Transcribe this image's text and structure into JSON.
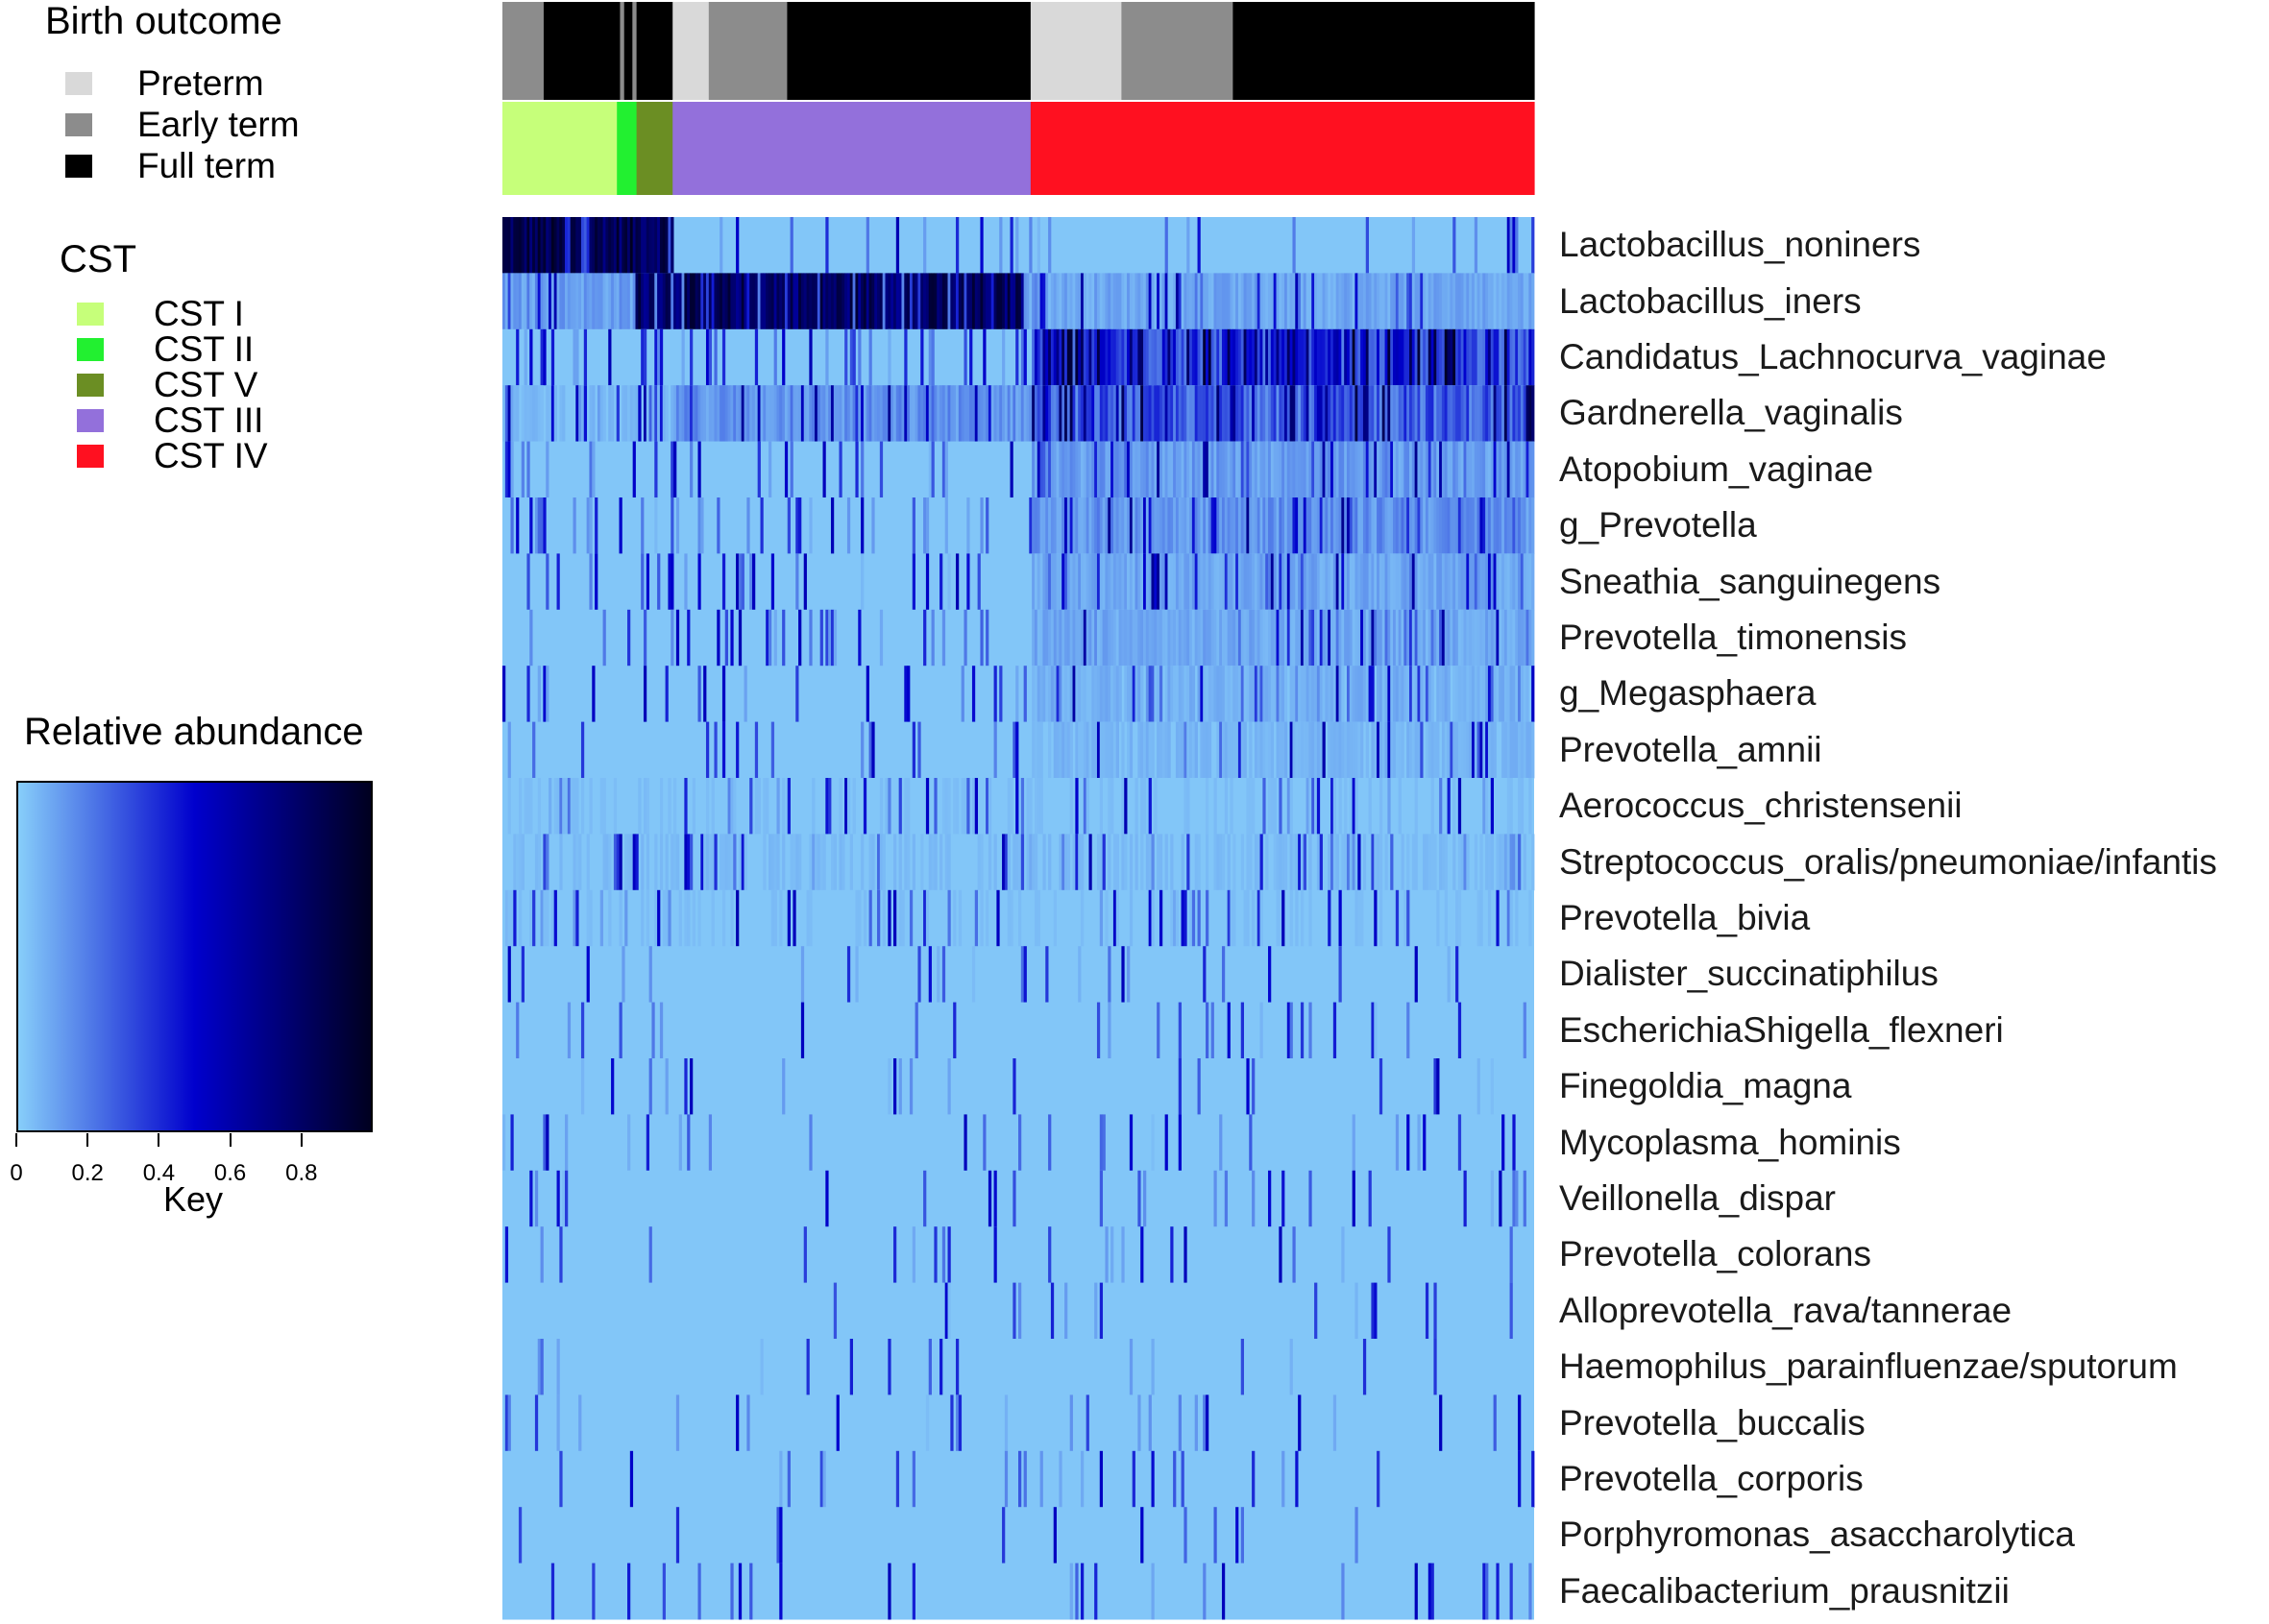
{
  "chart_data": {
    "type": "heatmap",
    "annotation_tracks": {
      "birth_outcome": {
        "title": "Birth outcome",
        "categories": [
          {
            "name": "Preterm",
            "color": "#d9d9d9"
          },
          {
            "name": "Early term",
            "color": "#8c8c8c"
          },
          {
            "name": "Full term",
            "color": "#000000"
          }
        ],
        "segments": [
          {
            "category": "Early term",
            "start": 0.0,
            "end": 0.04
          },
          {
            "category": "Full term",
            "start": 0.04,
            "end": 0.114
          },
          {
            "category": "Early term",
            "start": 0.114,
            "end": 0.118
          },
          {
            "category": "Full term",
            "start": 0.118,
            "end": 0.126
          },
          {
            "category": "Early term",
            "start": 0.126,
            "end": 0.13
          },
          {
            "category": "Full term",
            "start": 0.13,
            "end": 0.165
          },
          {
            "category": "Preterm",
            "start": 0.165,
            "end": 0.2
          },
          {
            "category": "Early term",
            "start": 0.2,
            "end": 0.276
          },
          {
            "category": "Full term",
            "start": 0.276,
            "end": 0.512
          },
          {
            "category": "Preterm",
            "start": 0.512,
            "end": 0.6
          },
          {
            "category": "Early term",
            "start": 0.6,
            "end": 0.708
          },
          {
            "category": "Full term",
            "start": 0.708,
            "end": 1.0
          }
        ]
      },
      "cst": {
        "title": "CST",
        "categories": [
          {
            "name": "CST  I",
            "color": "#c6ff7a"
          },
          {
            "name": "CST II",
            "color": "#22f030"
          },
          {
            "name": "CST V",
            "color": "#6b8e23"
          },
          {
            "name": "CST III",
            "color": "#9370db"
          },
          {
            "name": "CST IV",
            "color": "#ff1020"
          }
        ],
        "segments": [
          {
            "category": "CST  I",
            "start": 0.0,
            "end": 0.111
          },
          {
            "category": "CST II",
            "start": 0.111,
            "end": 0.13
          },
          {
            "category": "CST V",
            "start": 0.13,
            "end": 0.165
          },
          {
            "category": "CST III",
            "start": 0.165,
            "end": 0.512
          },
          {
            "category": "CST IV",
            "start": 0.512,
            "end": 1.0
          }
        ]
      }
    },
    "rows": [
      "Lactobacillus_noniners",
      "Lactobacillus_iners",
      "Candidatus_Lachnocurva_vaginae",
      "Gardnerella_vaginalis",
      "Atopobium_vaginae",
      "g_Prevotella",
      "Sneathia_sanguinegens",
      "Prevotella_timonensis",
      "g_Megasphaera",
      "Prevotella_amnii",
      "Aerococcus_christensenii",
      "Streptococcus_oralis/pneumoniae/infantis",
      "Prevotella_bivia",
      "Dialister_succinatiphilus",
      "EscherichiaShigella_flexneri",
      "Finegoldia_magna",
      "Mycoplasma_hominis",
      "Veillonella_dispar",
      "Prevotella_colorans",
      "Alloprevotella_rava/tannerae",
      "Haemophilus_parainfluenzae/sputorum",
      "Prevotella_buccalis",
      "Prevotella_corporis",
      "Porphyromonas_asaccharolytica",
      "Faecalibacterium_prausnitzii"
    ],
    "row_profiles": [
      {
        "segments": [
          {
            "start": 0.0,
            "end": 0.165,
            "level": 0.85
          },
          {
            "start": 0.165,
            "end": 1.0,
            "level": 0.03
          }
        ],
        "noise": 0.1
      },
      {
        "segments": [
          {
            "start": 0.0,
            "end": 0.13,
            "level": 0.15
          },
          {
            "start": 0.13,
            "end": 0.505,
            "level": 0.8
          },
          {
            "start": 0.505,
            "end": 1.0,
            "level": 0.12
          }
        ],
        "noise": 0.14
      },
      {
        "segments": [
          {
            "start": 0.0,
            "end": 0.512,
            "level": 0.03
          },
          {
            "start": 0.512,
            "end": 1.0,
            "level": 0.45
          }
        ],
        "noise": 0.22
      },
      {
        "segments": [
          {
            "start": 0.0,
            "end": 0.165,
            "level": 0.06
          },
          {
            "start": 0.165,
            "end": 0.512,
            "level": 0.18
          },
          {
            "start": 0.512,
            "end": 1.0,
            "level": 0.35
          }
        ],
        "noise": 0.2
      },
      {
        "segments": [
          {
            "start": 0.0,
            "end": 0.512,
            "level": 0.03
          },
          {
            "start": 0.512,
            "end": 1.0,
            "level": 0.15
          }
        ],
        "noise": 0.14
      },
      {
        "segments": [
          {
            "start": 0.0,
            "end": 0.512,
            "level": 0.03
          },
          {
            "start": 0.512,
            "end": 1.0,
            "level": 0.18
          }
        ],
        "noise": 0.15
      },
      {
        "segments": [
          {
            "start": 0.0,
            "end": 0.512,
            "level": 0.03
          },
          {
            "start": 0.512,
            "end": 1.0,
            "level": 0.12
          }
        ],
        "noise": 0.14
      },
      {
        "segments": [
          {
            "start": 0.0,
            "end": 0.512,
            "level": 0.03
          },
          {
            "start": 0.512,
            "end": 1.0,
            "level": 0.11
          }
        ],
        "noise": 0.13
      },
      {
        "segments": [
          {
            "start": 0.0,
            "end": 0.512,
            "level": 0.03
          },
          {
            "start": 0.512,
            "end": 1.0,
            "level": 0.09
          }
        ],
        "noise": 0.12
      },
      {
        "segments": [
          {
            "start": 0.0,
            "end": 0.512,
            "level": 0.02
          },
          {
            "start": 0.512,
            "end": 1.0,
            "level": 0.07
          }
        ],
        "noise": 0.11
      },
      {
        "segments": [
          {
            "start": 0.0,
            "end": 1.0,
            "level": 0.04
          }
        ],
        "noise": 0.1
      },
      {
        "segments": [
          {
            "start": 0.0,
            "end": 1.0,
            "level": 0.05
          }
        ],
        "noise": 0.1
      },
      {
        "segments": [
          {
            "start": 0.0,
            "end": 1.0,
            "level": 0.04
          }
        ],
        "noise": 0.1
      },
      {
        "segments": [
          {
            "start": 0.0,
            "end": 1.0,
            "level": 0.03
          }
        ],
        "noise": 0.08
      },
      {
        "segments": [
          {
            "start": 0.0,
            "end": 1.0,
            "level": 0.02
          }
        ],
        "noise": 0.07
      },
      {
        "segments": [
          {
            "start": 0.0,
            "end": 1.0,
            "level": 0.02
          }
        ],
        "noise": 0.07
      },
      {
        "segments": [
          {
            "start": 0.0,
            "end": 1.0,
            "level": 0.02
          }
        ],
        "noise": 0.07
      },
      {
        "segments": [
          {
            "start": 0.0,
            "end": 1.0,
            "level": 0.02
          }
        ],
        "noise": 0.06
      },
      {
        "segments": [
          {
            "start": 0.0,
            "end": 1.0,
            "level": 0.02
          }
        ],
        "noise": 0.06
      },
      {
        "segments": [
          {
            "start": 0.0,
            "end": 1.0,
            "level": 0.02
          }
        ],
        "noise": 0.05
      },
      {
        "segments": [
          {
            "start": 0.0,
            "end": 1.0,
            "level": 0.02
          }
        ],
        "noise": 0.05
      },
      {
        "segments": [
          {
            "start": 0.0,
            "end": 1.0,
            "level": 0.02
          }
        ],
        "noise": 0.06
      },
      {
        "segments": [
          {
            "start": 0.0,
            "end": 1.0,
            "level": 0.02
          }
        ],
        "noise": 0.06
      },
      {
        "segments": [
          {
            "start": 0.0,
            "end": 1.0,
            "level": 0.02
          }
        ],
        "noise": 0.05
      },
      {
        "segments": [
          {
            "start": 0.0,
            "end": 1.0,
            "level": 0.02
          }
        ],
        "noise": 0.05
      }
    ],
    "color_scale": {
      "title": "Relative abundance",
      "xlabel": "Key",
      "range": [
        0,
        1
      ],
      "ticks": [
        0,
        0.2,
        0.4,
        0.6,
        0.8
      ],
      "tick_labels": [
        "0",
        "0.2",
        "0.4",
        "0.6",
        "0.8"
      ],
      "colors": [
        "#87cefa",
        "#0000cd",
        "#000020"
      ]
    }
  }
}
